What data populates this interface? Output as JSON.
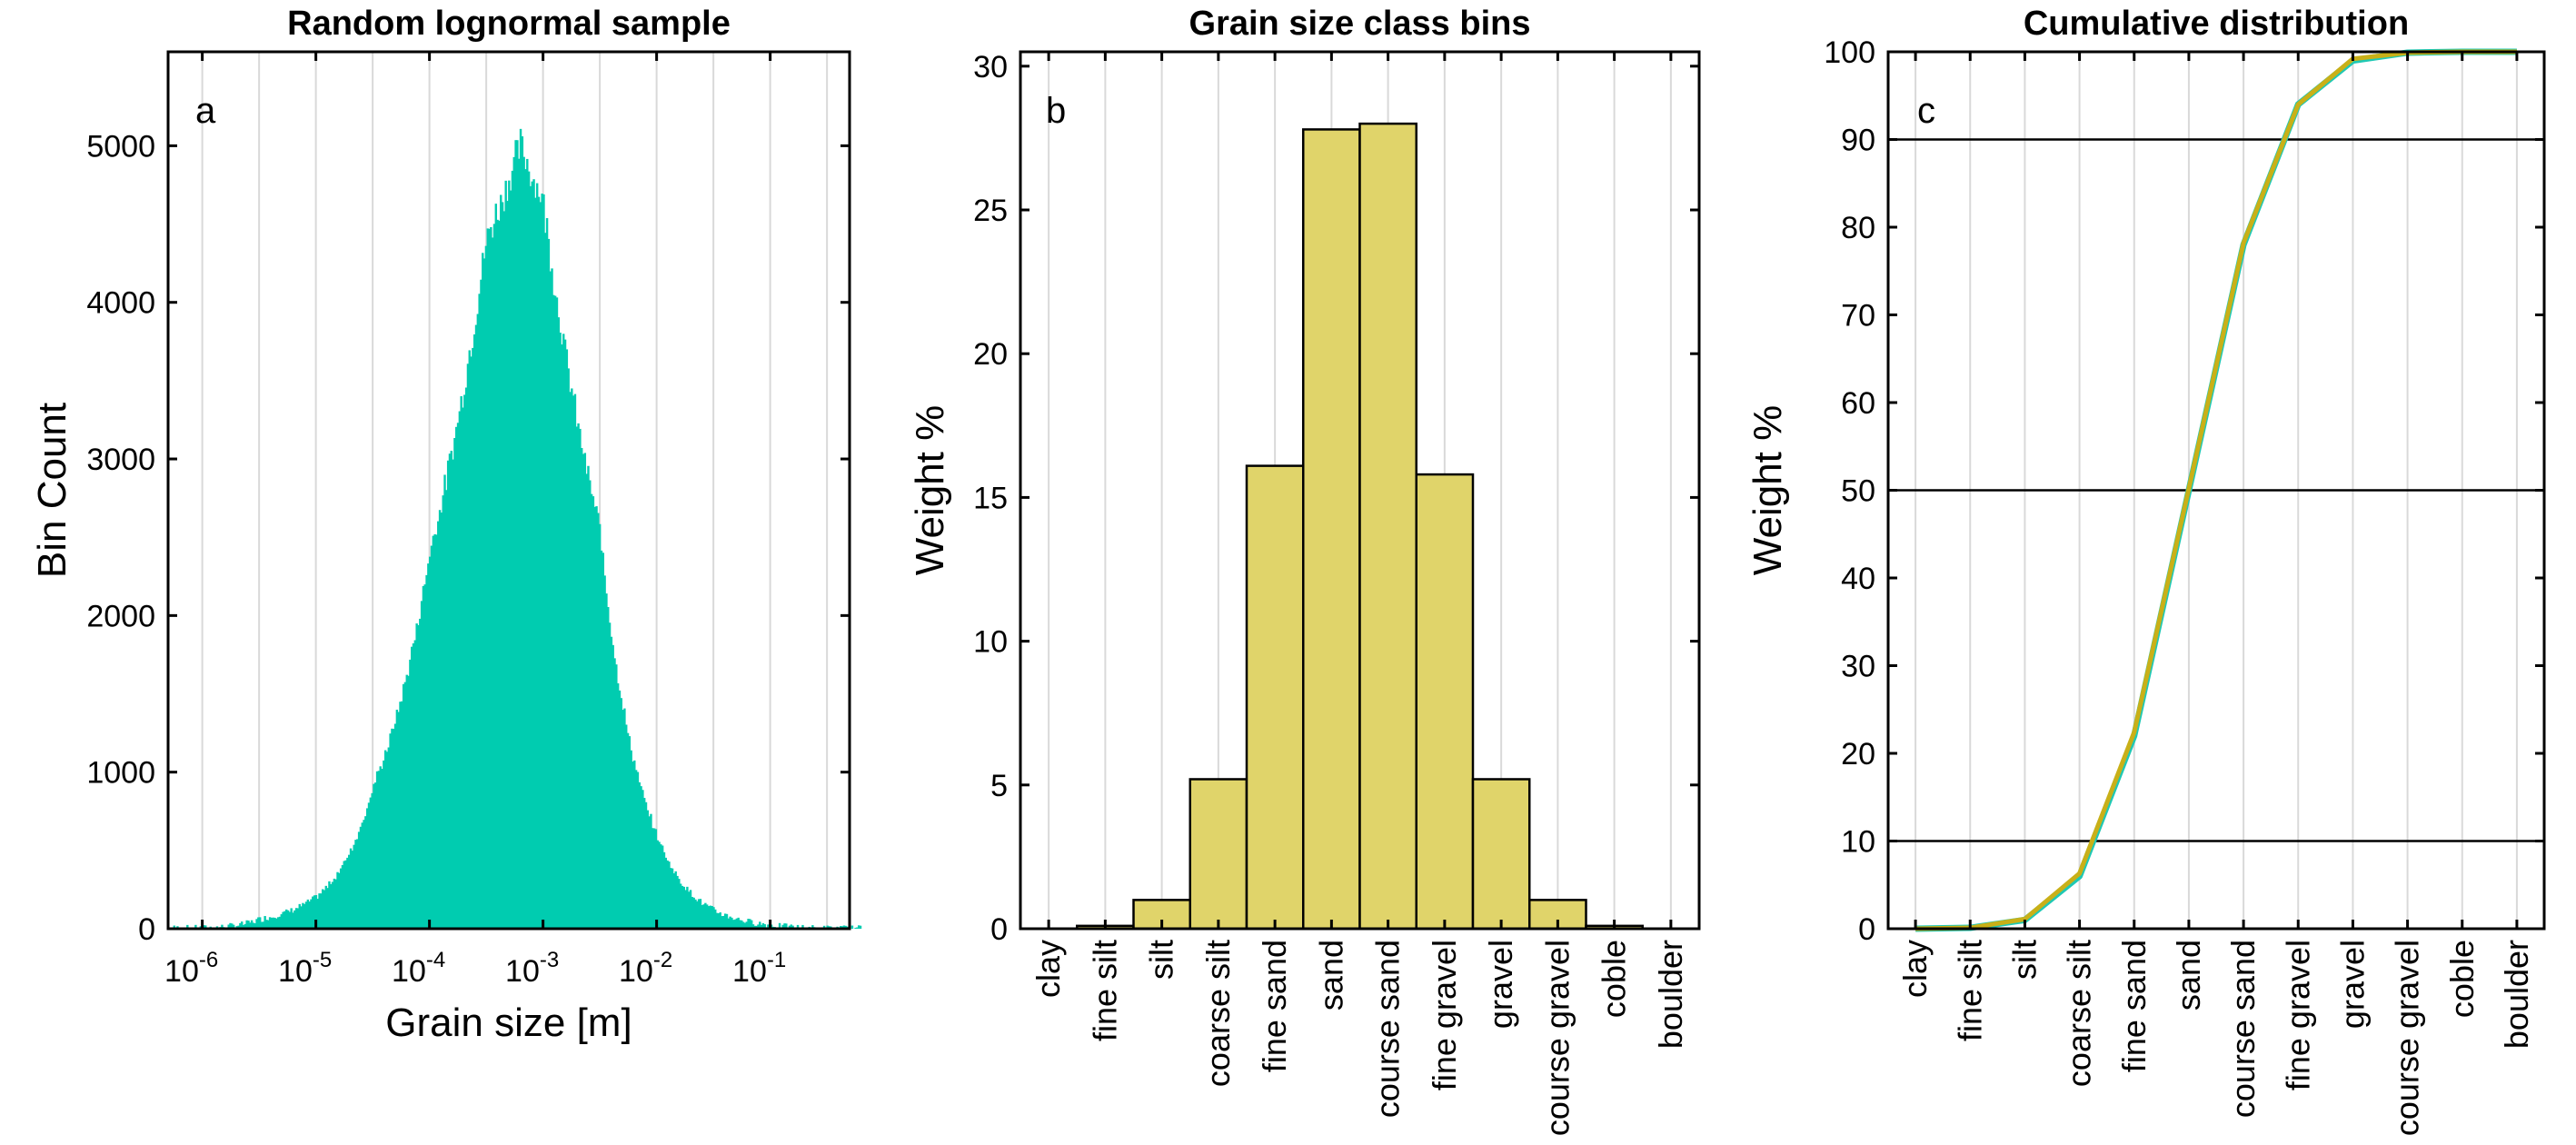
{
  "colors": {
    "histogram_fill": "#00CCB0",
    "bar_fill": "#E0D46A",
    "bar_edge": "#000000",
    "cdf_sample": "#1FC8B4",
    "cdf_binned": "#C9B018",
    "grid": "#D9D9D9",
    "axis": "#000000"
  },
  "chart_data": [
    {
      "type": "bar",
      "panel_label": "a",
      "title": "Random lognormal sample",
      "xlabel": "Grain size [m]",
      "ylabel": "Bin Count",
      "x_scale": "log10",
      "xlim": [
        5e-07,
        0.5
      ],
      "ylim": [
        0,
        5600
      ],
      "x_tick_labels": [
        "10-6",
        "10-5",
        "10-4",
        "10-3",
        "10-2",
        "10-1"
      ],
      "y_ticks": [
        0,
        1000,
        2000,
        3000,
        4000,
        5000
      ],
      "grid": "vertical",
      "distribution": "lognormal",
      "peak_grain_size_m": 0.00065,
      "peak_count": 5000,
      "log10_sigma": 0.72,
      "x_log10": [
        -6.0,
        -5.5,
        -5.0,
        -4.5,
        -4.0,
        -3.5,
        -3.2,
        -3.0,
        -2.5,
        -2.0,
        -1.5,
        -1.0,
        -0.5
      ],
      "counts": [
        5,
        60,
        200,
        900,
        2400,
        4400,
        5000,
        4650,
        2550,
        600,
        120,
        25,
        3
      ]
    },
    {
      "type": "bar",
      "panel_label": "b",
      "title": "Grain size class bins",
      "xlabel": "",
      "ylabel": "Weight %",
      "ylim": [
        0,
        30.5
      ],
      "y_ticks": [
        0,
        5,
        10,
        15,
        20,
        25,
        30
      ],
      "categories": [
        "clay",
        "fine silt",
        "silt",
        "coarse silt",
        "fine sand",
        "sand",
        "course sand",
        "fine gravel",
        "gravel",
        "course gravel",
        "coble",
        "boulder"
      ],
      "values": [
        0.0,
        0.1,
        1.0,
        5.2,
        16.1,
        27.8,
        28.0,
        15.8,
        5.2,
        1.0,
        0.1,
        0.0
      ],
      "grid": "vertical"
    },
    {
      "type": "line",
      "panel_label": "c",
      "title": "Cumulative distribution",
      "xlabel": "",
      "ylabel": "Weight %",
      "ylim": [
        0,
        100
      ],
      "y_ticks": [
        0,
        10,
        20,
        30,
        40,
        50,
        60,
        70,
        80,
        90,
        100
      ],
      "categories": [
        "clay",
        "fine silt",
        "silt",
        "coarse silt",
        "fine sand",
        "sand",
        "course sand",
        "fine gravel",
        "gravel",
        "course gravel",
        "coble",
        "boulder"
      ],
      "reference_lines": [
        10,
        50,
        90
      ],
      "grid": "vertical",
      "series": [
        {
          "values": [
            0.0,
            0.1,
            1.0,
            6.0,
            22.0,
            50.0,
            78.0,
            94.0,
            99.0,
            99.9,
            100.0,
            100.0
          ]
        },
        {
          "values": [
            0.0,
            0.1,
            1.1,
            6.3,
            22.4,
            50.2,
            78.2,
            94.0,
            99.2,
            99.9,
            100.0,
            100.0
          ]
        }
      ]
    }
  ]
}
